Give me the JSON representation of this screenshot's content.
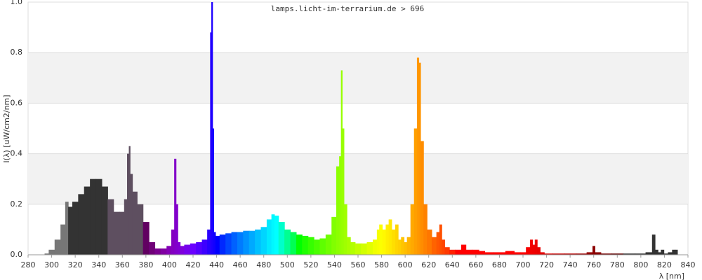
{
  "chart_data": {
    "type": "spectrum",
    "title": "lamps.licht-im-terrarium.de > 696",
    "x_label": "λ [nm]",
    "y_label": "I(λ)  [uW/cm2/nm]",
    "xlim": [
      280,
      840
    ],
    "ylim": [
      0,
      1.0
    ],
    "xticks": [
      280,
      300,
      320,
      340,
      360,
      380,
      400,
      420,
      440,
      460,
      480,
      500,
      520,
      540,
      560,
      580,
      600,
      620,
      640,
      660,
      680,
      700,
      720,
      740,
      760,
      780,
      800,
      820,
      840
    ],
    "yticks": [
      {
        "value": 0,
        "label": "0.0"
      },
      0.2,
      0.4,
      0.6,
      0.8,
      {
        "value": 1.0,
        "label": "1.0"
      }
    ],
    "grid": true,
    "x": [
      295,
      300,
      305,
      310,
      313,
      315,
      320,
      325,
      330,
      335,
      340,
      345,
      350,
      355,
      360,
      363,
      365,
      366,
      367,
      370,
      375,
      380,
      385,
      390,
      395,
      400,
      403,
      405,
      406,
      408,
      410,
      415,
      420,
      425,
      430,
      434,
      435,
      436,
      437,
      438,
      440,
      445,
      450,
      455,
      460,
      465,
      470,
      475,
      480,
      485,
      488,
      490,
      495,
      500,
      505,
      510,
      515,
      520,
      525,
      530,
      535,
      540,
      543,
      545,
      546,
      547,
      549,
      552,
      555,
      560,
      565,
      570,
      575,
      577,
      579,
      582,
      585,
      587,
      590,
      593,
      595,
      598,
      600,
      603,
      606,
      609,
      611,
      612,
      614,
      617,
      620,
      625,
      628,
      630,
      632,
      635,
      640,
      645,
      650,
      653,
      660,
      665,
      670,
      680,
      690,
      695,
      700,
      705,
      707,
      709,
      711,
      713,
      716,
      720,
      730,
      740,
      750,
      758,
      760,
      762,
      770,
      780,
      790,
      800,
      808,
      811,
      813,
      816,
      818,
      821,
      825,
      828,
      830
    ],
    "values": [
      0.005,
      0.02,
      0.06,
      0.12,
      0.21,
      0.19,
      0.21,
      0.24,
      0.27,
      0.3,
      0.3,
      0.27,
      0.22,
      0.17,
      0.17,
      0.22,
      0.4,
      0.43,
      0.32,
      0.25,
      0.2,
      0.13,
      0.05,
      0.025,
      0.025,
      0.035,
      0.1,
      0.38,
      0.2,
      0.05,
      0.035,
      0.04,
      0.045,
      0.05,
      0.06,
      0.1,
      0.88,
      1.0,
      0.5,
      0.09,
      0.075,
      0.08,
      0.085,
      0.09,
      0.09,
      0.095,
      0.095,
      0.1,
      0.11,
      0.14,
      0.16,
      0.155,
      0.13,
      0.1,
      0.09,
      0.08,
      0.075,
      0.07,
      0.06,
      0.065,
      0.08,
      0.15,
      0.35,
      0.39,
      0.73,
      0.5,
      0.2,
      0.07,
      0.05,
      0.045,
      0.045,
      0.05,
      0.06,
      0.1,
      0.12,
      0.1,
      0.12,
      0.14,
      0.1,
      0.12,
      0.06,
      0.07,
      0.05,
      0.07,
      0.2,
      0.5,
      0.78,
      0.76,
      0.45,
      0.2,
      0.1,
      0.07,
      0.09,
      0.12,
      0.06,
      0.03,
      0.02,
      0.02,
      0.04,
      0.02,
      0.02,
      0.015,
      0.01,
      0.01,
      0.015,
      0.01,
      0.01,
      0.03,
      0.06,
      0.04,
      0.06,
      0.03,
      0.01,
      0.005,
      0.005,
      0.005,
      0.005,
      0.01,
      0.035,
      0.01,
      0.005,
      0.005,
      0.005,
      0.005,
      0.01,
      0.08,
      0.02,
      0.01,
      0.02,
      0.005,
      0.01,
      0.02,
      0.02
    ]
  }
}
